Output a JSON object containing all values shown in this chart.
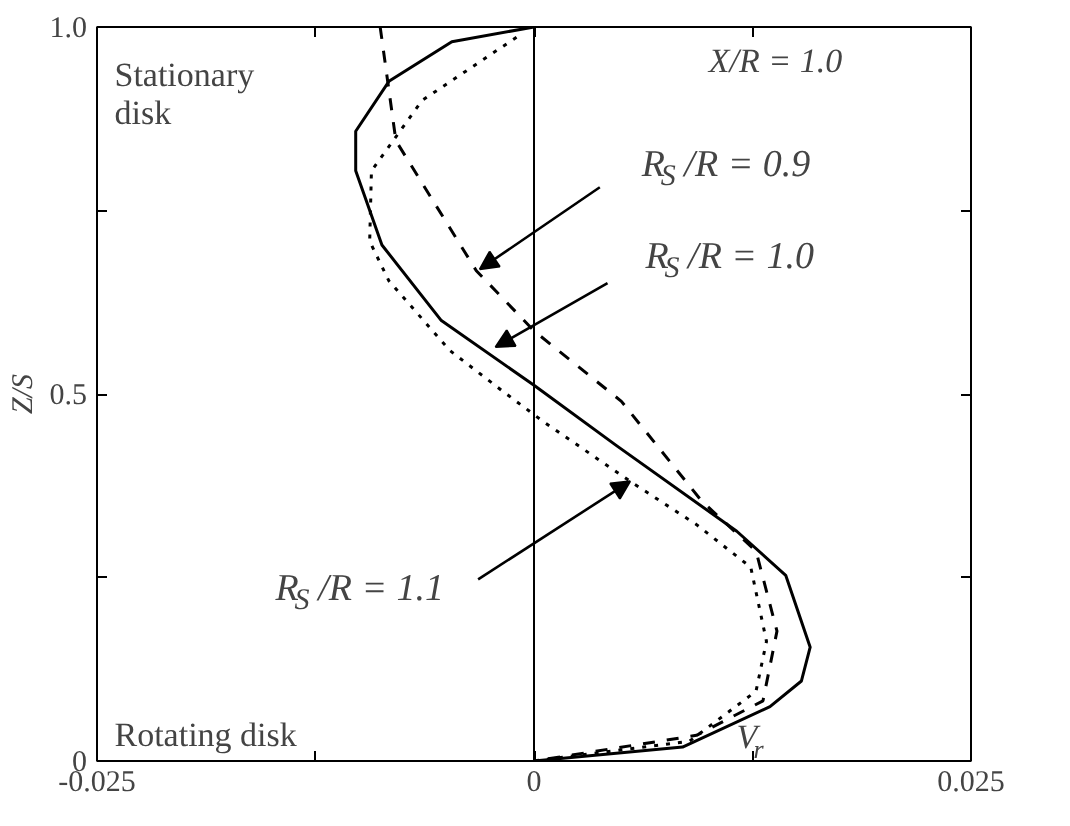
{
  "chart_data": {
    "type": "line",
    "xlabel": "V$_{r}$",
    "ylabel": "Z/S",
    "xlim": [
      -0.025,
      0.025
    ],
    "ylim": [
      0,
      1.0
    ],
    "xticks": [
      -0.025,
      {
        "value": -0.0125,
        "label": null
      },
      0,
      {
        "value": 0.0125,
        "label": null
      },
      0.025
    ],
    "yticks": [
      0,
      {
        "value": 0.25,
        "label": null
      },
      0.5,
      {
        "value": 0.75,
        "label": null
      },
      "1.0"
    ],
    "grid": false,
    "marker": "none",
    "series": [
      {
        "color": "#000000",
        "line_style": "solid",
        "x": [
          0,
          -0.0047,
          -0.0083,
          -0.0102,
          -0.0102,
          -0.0087,
          -0.0053,
          0,
          0.0047,
          0.0116,
          0.0144,
          0.0158,
          0.0153,
          0.0135,
          0.0085,
          0
        ],
        "values": [
          1.0,
          0.98,
          0.926,
          0.858,
          0.804,
          0.703,
          0.6,
          0.512,
          0.43,
          0.313,
          0.253,
          0.155,
          0.109,
          0.074,
          0.019,
          0
        ]
      },
      {
        "color": "#000000",
        "line_style": "dashed",
        "x": [
          -0.0088,
          -0.0079,
          -0.0033,
          0,
          0.005,
          0.0096,
          0.0127,
          0.0139,
          0.0131,
          0.0093,
          0
        ],
        "values": [
          1.0,
          0.845,
          0.668,
          0.586,
          0.49,
          0.354,
          0.286,
          0.177,
          0.082,
          0.035,
          0
        ]
      },
      {
        "color": "#000000",
        "line_style": "dotted",
        "x": [
          -0.001,
          -0.0064,
          -0.0093,
          -0.0094,
          -0.0083,
          -0.0048,
          -0.0018,
          0.0005,
          0.0055,
          0.0093,
          0.0124,
          0.0133,
          0.0127,
          0.0089,
          0
        ],
        "values": [
          0.986,
          0.9,
          0.804,
          0.708,
          0.654,
          0.559,
          0.504,
          0.463,
          0.381,
          0.322,
          0.264,
          0.163,
          0.095,
          0.027,
          0
        ]
      }
    ],
    "ref_lines": [
      {
        "axis": "x",
        "value": 0,
        "color": "#000000"
      }
    ],
    "annotations": [
      "Stationary\ndisk",
      "Rotating disk",
      "X/R = 1.0",
      {
        "text": "R$_{S}$/R = 0.9",
        "x": -0.0031,
        "y": 0.67
      },
      {
        "text": "R$_{S}$/R = 1.0",
        "x": -0.0022,
        "y": 0.564
      },
      {
        "text": "R$_{S}$/R = 1.1",
        "x": 0.0055,
        "y": 0.381
      }
    ]
  }
}
